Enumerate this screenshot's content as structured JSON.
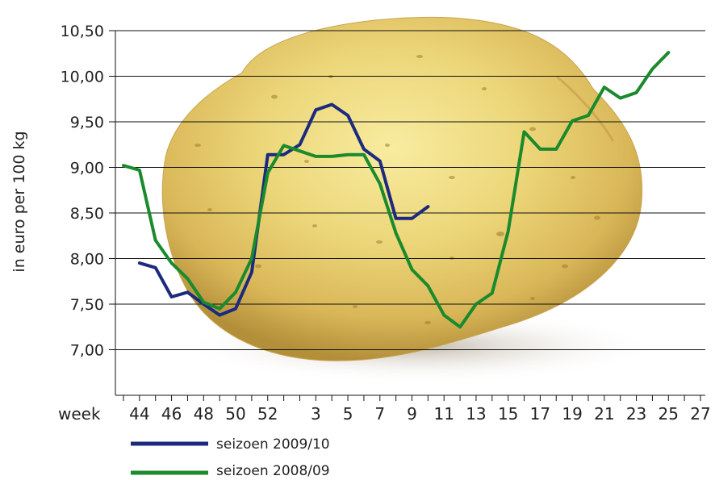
{
  "chart_data": {
    "type": "line",
    "ylabel": "in euro per 100 kg",
    "xlabel": "week",
    "ylim": [
      6.5,
      10.5
    ],
    "yticks": [
      "7,00",
      "7,50",
      "8,00",
      "8,50",
      "9,00",
      "9,50",
      "10,00",
      "10,50"
    ],
    "ytick_values": [
      7.0,
      7.5,
      8.0,
      8.5,
      9.0,
      9.5,
      10.0,
      10.5
    ],
    "x": [
      43,
      44,
      45,
      46,
      47,
      48,
      49,
      50,
      51,
      52,
      1,
      2,
      3,
      4,
      5,
      6,
      7,
      8,
      9,
      10,
      11,
      12,
      13,
      14,
      15,
      16,
      17,
      18,
      19,
      20,
      21,
      22,
      23,
      24,
      25,
      26,
      27
    ],
    "xtick_labels": [
      "44",
      "46",
      "48",
      "50",
      "52",
      "3",
      "5",
      "7",
      "9",
      "11",
      "13",
      "15",
      "17",
      "19",
      "21",
      "23",
      "25",
      "27"
    ],
    "xtick_positions": [
      "44",
      "46",
      "48",
      "50",
      "52",
      "3",
      "5",
      "7",
      "9",
      "11",
      "13",
      "15",
      "17",
      "19",
      "21",
      "23",
      "25",
      "27"
    ],
    "grid": "horizontal",
    "background_image": "potato",
    "legend_position": "bottom-left",
    "series": [
      {
        "name": "seizoen 2009/10",
        "color": "#1c2a7e",
        "values": [
          null,
          7.95,
          7.9,
          7.58,
          7.63,
          7.5,
          7.38,
          7.45,
          7.85,
          9.14,
          9.14,
          9.25,
          9.63,
          9.69,
          9.57,
          9.2,
          9.07,
          8.44,
          8.44,
          8.57,
          null,
          null,
          null,
          null,
          null,
          null,
          null,
          null,
          null,
          null,
          null,
          null,
          null,
          null,
          null,
          null,
          null
        ]
      },
      {
        "name": "seizoen 2008/09",
        "color": "#1a8a2c",
        "values": [
          9.02,
          8.97,
          8.2,
          7.95,
          7.78,
          7.52,
          7.45,
          7.63,
          8.0,
          8.94,
          9.24,
          9.18,
          9.12,
          9.12,
          9.14,
          9.14,
          8.82,
          8.28,
          7.88,
          7.7,
          7.38,
          7.25,
          7.5,
          7.62,
          8.3,
          9.39,
          9.2,
          9.2,
          9.51,
          9.57,
          9.88,
          9.76,
          9.82,
          10.08,
          10.26,
          null,
          null
        ]
      }
    ]
  }
}
